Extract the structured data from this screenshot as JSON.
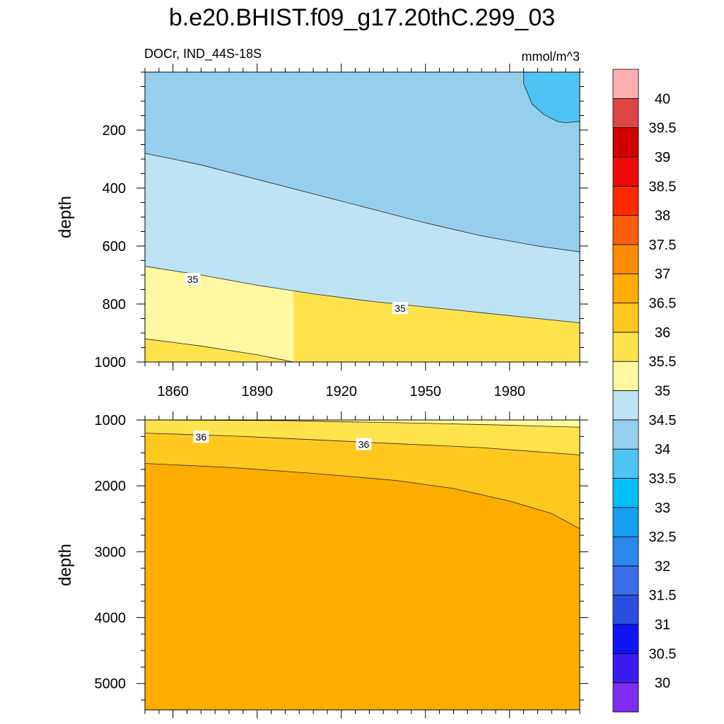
{
  "chart_data": {
    "type": "heatmap",
    "title": "b.e20.BHIST.f09_g17.20thC.299_03",
    "subtitle_left": "DOCr, IND_44S-18S",
    "subtitle_right": "mmol/m^3",
    "xlim": [
      1850,
      2005
    ],
    "x_ticks": [
      1860,
      1890,
      1920,
      1950,
      1980
    ],
    "panels": [
      {
        "name": "upper",
        "ylabel": "depth",
        "ylim": [
          0,
          1000
        ],
        "y_reversed": true,
        "y_ticks": [
          200,
          400,
          600,
          800,
          1000
        ],
        "x_tick_labels_shown": true,
        "boundaries": [
          {
            "level": 33.5,
            "points": [
              [
                1985,
                0
              ],
              [
                1985,
                40
              ],
              [
                1988,
                110
              ],
              [
                1992,
                145
              ],
              [
                1997,
                170
              ],
              [
                2000,
                175
              ],
              [
                2005,
                170
              ]
            ]
          },
          {
            "level": 34,
            "points": [
              [
                1850,
                280
              ],
              [
                1870,
                320
              ],
              [
                1890,
                370
              ],
              [
                1910,
                420
              ],
              [
                1930,
                470
              ],
              [
                1950,
                520
              ],
              [
                1970,
                565
              ],
              [
                1990,
                600
              ],
              [
                2005,
                620
              ]
            ]
          },
          {
            "level": 34.5,
            "points": [
              [
                1850,
                670
              ],
              [
                1870,
                700
              ],
              [
                1890,
                735
              ],
              [
                1910,
                765
              ],
              [
                1930,
                790
              ],
              [
                1950,
                810
              ],
              [
                1970,
                830
              ],
              [
                1990,
                850
              ],
              [
                2005,
                865
              ]
            ]
          },
          {
            "level": 35,
            "points": [
              [
                1850,
                920
              ],
              [
                1870,
                945
              ],
              [
                1890,
                975
              ],
              [
                1903,
                1000
              ]
            ]
          }
        ],
        "bottom_level": 35.5,
        "contour_labels": [
          {
            "text": "35",
            "x": 1867,
            "y": 715
          },
          {
            "text": "35",
            "x": 1941,
            "y": 815
          }
        ]
      },
      {
        "name": "lower",
        "ylabel": "depth",
        "ylim": [
          1000,
          5400
        ],
        "y_reversed": true,
        "y_ticks": [
          1000,
          2000,
          3000,
          4000,
          5000
        ],
        "x_tick_labels_shown": false,
        "boundaries": [
          {
            "level": 35,
            "points": [
              [
                1850,
                1000
              ],
              [
                1900,
                1010
              ],
              [
                1950,
                1050
              ],
              [
                1980,
                1080
              ],
              [
                2005,
                1110
              ]
            ]
          },
          {
            "level": 35.5,
            "points": [
              [
                1850,
                1200
              ],
              [
                1880,
                1240
              ],
              [
                1910,
                1300
              ],
              [
                1940,
                1360
              ],
              [
                1970,
                1420
              ],
              [
                2005,
                1530
              ]
            ]
          },
          {
            "level": 36,
            "points": [
              [
                1850,
                1660
              ],
              [
                1880,
                1720
              ],
              [
                1910,
                1810
              ],
              [
                1940,
                1920
              ],
              [
                1960,
                2040
              ],
              [
                1980,
                2230
              ],
              [
                1995,
                2420
              ],
              [
                2005,
                2650
              ]
            ]
          }
        ],
        "bottom_level": 36.5,
        "contour_labels": [
          {
            "text": "36",
            "x": 1870,
            "y": 1260
          },
          {
            "text": "36",
            "x": 1928,
            "y": 1370
          }
        ]
      }
    ],
    "colorbar": {
      "levels": [
        30,
        30.5,
        31,
        31.5,
        32,
        32.5,
        33,
        33.5,
        34,
        34.5,
        35,
        35.5,
        36,
        36.5,
        37,
        37.5,
        38,
        38.5,
        39,
        39.5,
        40
      ],
      "labels": [
        "30",
        "30.5",
        "31",
        "31.5",
        "32",
        "32.5",
        "33",
        "33.5",
        "34",
        "34.5",
        "35",
        "35.5",
        "36",
        "36.5",
        "37",
        "37.5",
        "38",
        "38.5",
        "39",
        "39.5",
        "40"
      ],
      "colors": [
        "#7d2cf0",
        "#3b1bf0",
        "#0f13f5",
        "#2b4de0",
        "#3a6ee8",
        "#2b88ec",
        "#179ff2",
        "#00bff6",
        "#4dc4f4",
        "#96cfee",
        "#bde3f5",
        "#fff8a0",
        "#ffe34d",
        "#ffc81f",
        "#ffac00",
        "#ff8c00",
        "#ff5e0a",
        "#ff2a00",
        "#f00a0a",
        "#d00000",
        "#e04545",
        "#ffb0b0"
      ]
    }
  }
}
